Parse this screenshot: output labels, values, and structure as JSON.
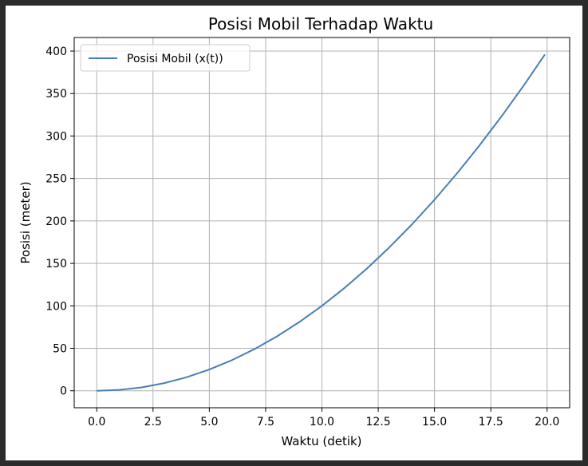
{
  "chart_data": {
    "type": "line",
    "title": "Posisi Mobil Terhadap Waktu",
    "xlabel": "Waktu (detik)",
    "ylabel": "Posisi (meter)",
    "xlim": [
      -1,
      21
    ],
    "ylim": [
      -20,
      416
    ],
    "grid": true,
    "legend": "top-left",
    "xticks": [
      0.0,
      2.5,
      5.0,
      7.5,
      10.0,
      12.5,
      15.0,
      17.5,
      20.0
    ],
    "xtick_labels": [
      "0.0",
      "2.5",
      "5.0",
      "7.5",
      "10.0",
      "12.5",
      "15.0",
      "17.5",
      "20.0"
    ],
    "yticks": [
      0,
      50,
      100,
      150,
      200,
      250,
      300,
      350,
      400
    ],
    "ytick_labels": [
      "0",
      "50",
      "100",
      "150",
      "200",
      "250",
      "300",
      "350",
      "400"
    ],
    "series": [
      {
        "name": "Posisi Mobil (x(t))",
        "color": "#4a7fb5",
        "x": [
          0,
          1,
          2,
          3,
          4,
          5,
          6,
          7,
          8,
          9,
          10,
          11,
          12,
          13,
          14,
          15,
          16,
          17,
          18,
          19,
          19.9
        ],
        "y": [
          0,
          1,
          4,
          9,
          16,
          25,
          36,
          49,
          64,
          81,
          100,
          121,
          144,
          169,
          196,
          225,
          256,
          289,
          324,
          361,
          396
        ]
      }
    ]
  }
}
